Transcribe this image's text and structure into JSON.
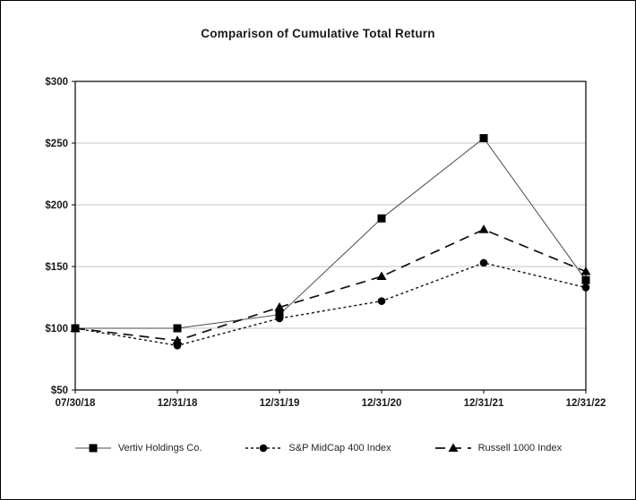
{
  "page": {
    "background": "#ffffff",
    "border_color": "#000000"
  },
  "chart_data": {
    "type": "line",
    "title": "Comparison of Cumulative Total Return",
    "xlabel": "",
    "ylabel": "",
    "categories": [
      "07/30/18",
      "12/31/18",
      "12/31/19",
      "12/31/20",
      "12/31/21",
      "12/31/22"
    ],
    "series": [
      {
        "name": "Vertiv Holdings Co.",
        "values": [
          100,
          100,
          111,
          189,
          254,
          139
        ],
        "marker": "square",
        "line_style": "solid",
        "color": "#4a4a4a"
      },
      {
        "name": "S&P MidCap 400 Index",
        "values": [
          100,
          86,
          108,
          122,
          153,
          133
        ],
        "marker": "circle",
        "line_style": "dotted",
        "color": "#111111"
      },
      {
        "name": "Russell 1000 Index",
        "values": [
          100,
          90,
          117,
          142,
          180,
          146
        ],
        "marker": "triangle",
        "line_style": "dashed",
        "color": "#111111"
      }
    ],
    "ylim": [
      50,
      300
    ],
    "yticks": [
      50,
      100,
      150,
      200,
      250,
      300
    ],
    "ytick_labels": [
      "$50",
      "$100",
      "$150",
      "$200",
      "$250",
      "$300"
    ],
    "grid": true,
    "gridline_color": "#c6c6c6",
    "axis_color": "#000000",
    "marker_color": "#000000",
    "legend_position": "bottom"
  }
}
